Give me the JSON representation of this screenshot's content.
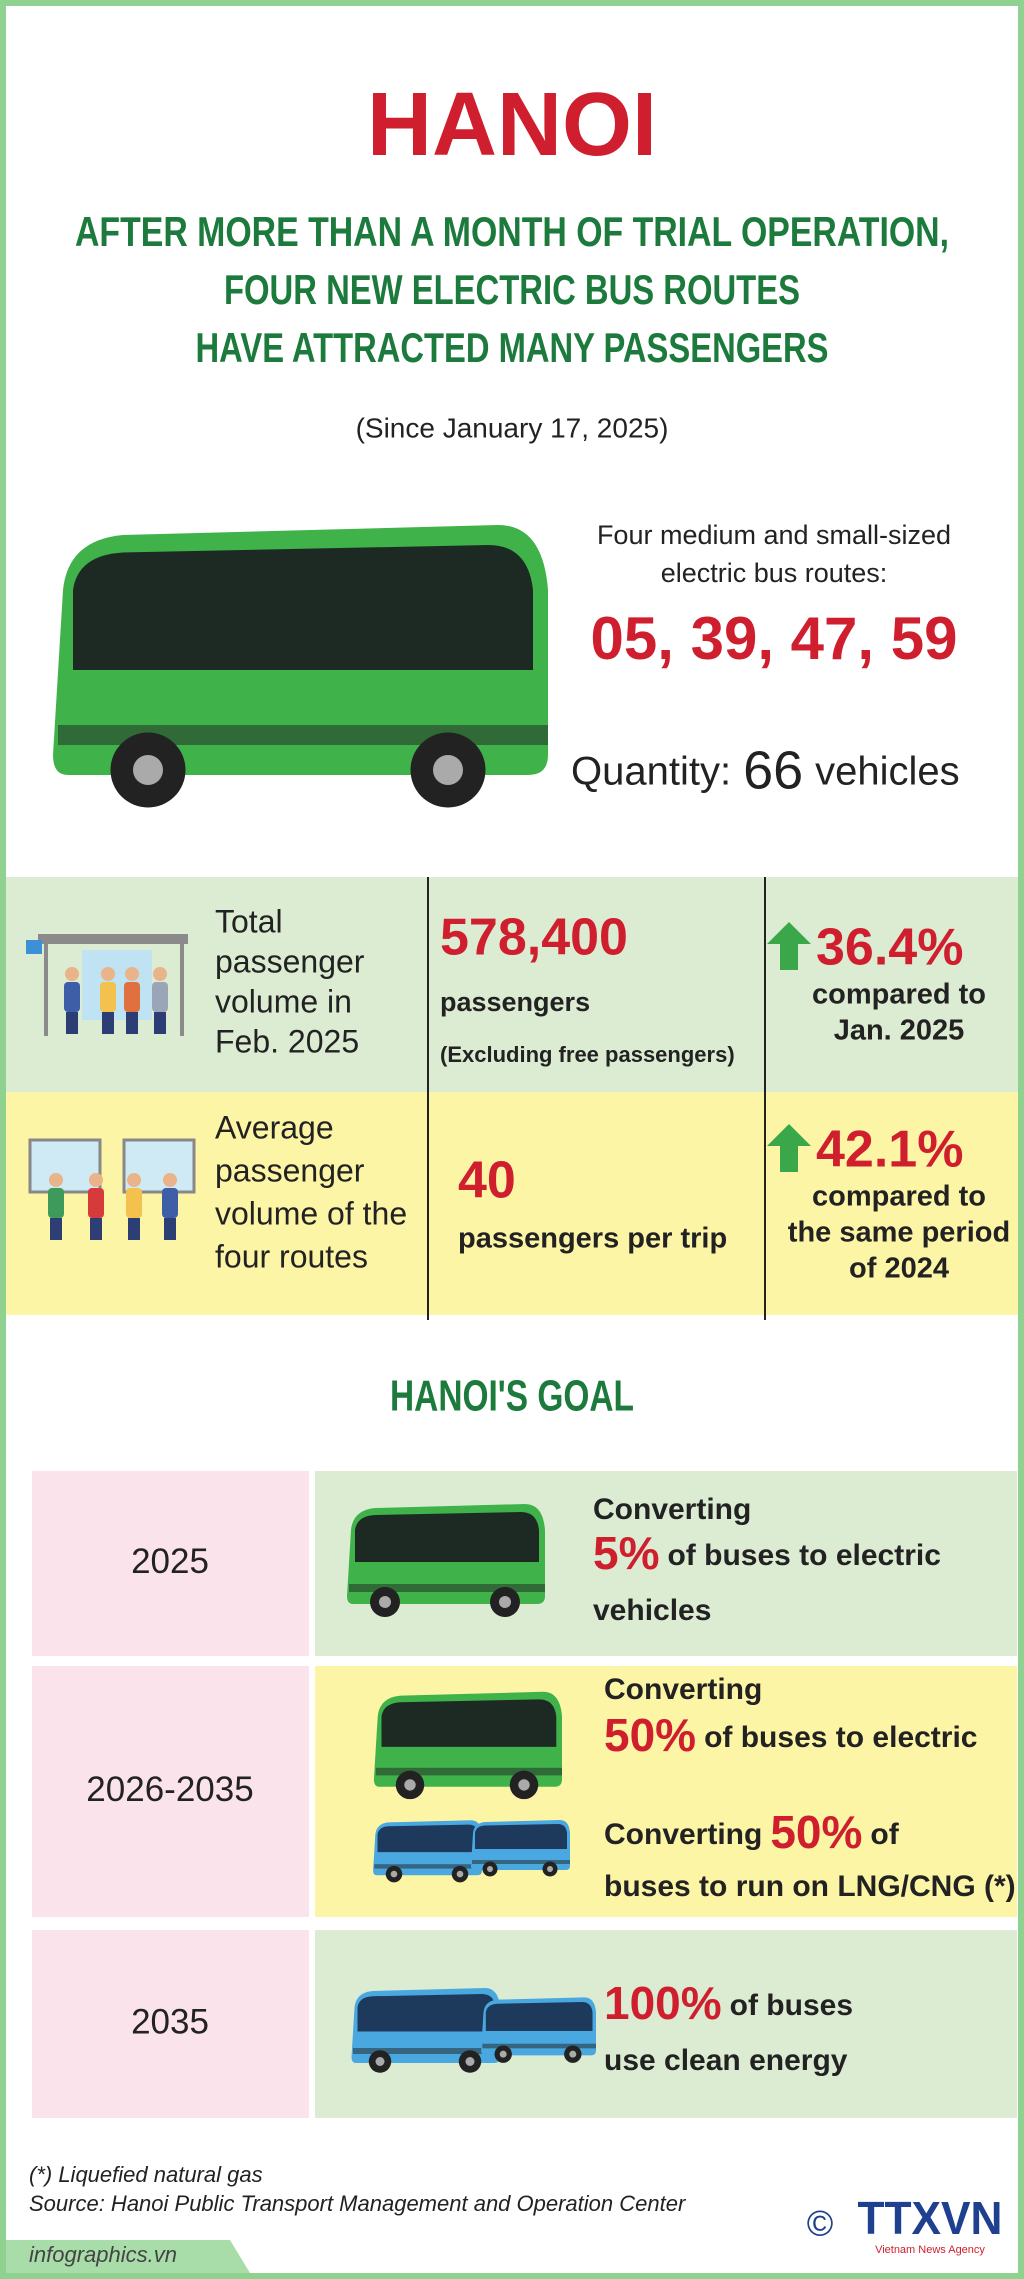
{
  "header": {
    "title": "HANOI",
    "subtitle": [
      "AFTER MORE THAN A MONTH OF TRIAL OPERATION,",
      "FOUR NEW ELECTRIC BUS ROUTES",
      "HAVE ATTRACTED MANY PASSENGERS"
    ],
    "period": "(Since January 17, 2025)"
  },
  "routes": {
    "description": [
      "Four medium and small-sized",
      "electric bus routes:"
    ],
    "numbers": "05, 39, 47, 59",
    "quantity_label": "Quantity:",
    "quantity_value": "66",
    "quantity_unit": "vehicles"
  },
  "stats": [
    {
      "label": [
        "Total",
        "passenger",
        "volume in",
        "Feb. 2025"
      ],
      "value": "578,400",
      "unit": "passengers",
      "note": "(Excluding free passengers)",
      "change": "36.4%",
      "comparison": [
        "compared to",
        "Jan. 2025"
      ]
    },
    {
      "label": [
        "Average",
        "passenger",
        "volume of the",
        "four routes"
      ],
      "value": "40",
      "unit": "passengers per trip",
      "change": "42.1%",
      "comparison": [
        "compared to",
        "the same period",
        "of 2024"
      ]
    }
  ],
  "goal": {
    "title": "HANOI'S GOAL",
    "rows": [
      {
        "year": "2025",
        "lines": [
          [
            "Converting"
          ],
          [
            "5%",
            "of buses to electric"
          ],
          [
            "vehicles"
          ]
        ]
      },
      {
        "year": "2026-2035",
        "lines": [
          [
            "Converting"
          ],
          [
            "50%",
            "of buses to electric"
          ],
          [
            "Converting",
            "50%",
            "of"
          ],
          [
            "buses to run on LNG/CNG (*)"
          ]
        ]
      },
      {
        "year": "2035",
        "lines": [
          [
            "100%",
            "of buses"
          ],
          [
            "use clean energy"
          ]
        ]
      }
    ]
  },
  "footer": {
    "footnote": "(*) Liquefied natural gas",
    "source": "Source: Hanoi Public Transport Management and Operation Center",
    "website": "infographics.vn",
    "copyright": "©",
    "logo": "TTXVN",
    "agency": "Vietnam News Agency"
  }
}
